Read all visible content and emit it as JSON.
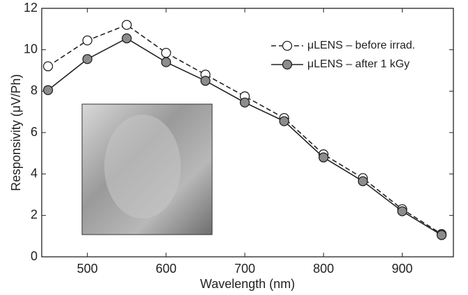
{
  "chart_data": {
    "type": "line",
    "xlabel": "Wavelength (nm)",
    "ylabel": "Responsivity (μV/Ph)",
    "x": [
      450,
      500,
      550,
      600,
      650,
      700,
      750,
      800,
      850,
      900,
      950
    ],
    "series": [
      {
        "name": "μLENS – before irrad.",
        "color": "#222222",
        "dash": true,
        "marker_fill": "#ffffff",
        "values": [
          9.2,
          10.45,
          11.2,
          9.85,
          8.8,
          7.75,
          6.7,
          4.95,
          3.8,
          2.3,
          1.1
        ]
      },
      {
        "name": "μLENS – after 1 kGy",
        "color": "#222222",
        "dash": false,
        "marker_fill": "#8c8c8c",
        "values": [
          8.05,
          9.55,
          10.55,
          9.4,
          8.5,
          7.45,
          6.55,
          4.8,
          3.65,
          2.2,
          1.05
        ]
      }
    ],
    "xlim": [
      442,
      965
    ],
    "xticks": [
      500,
      600,
      700,
      800,
      900
    ],
    "ylim": [
      0,
      12
    ],
    "yticks": [
      0,
      2,
      4,
      6,
      8,
      10,
      12
    ],
    "legend": "upper right"
  }
}
